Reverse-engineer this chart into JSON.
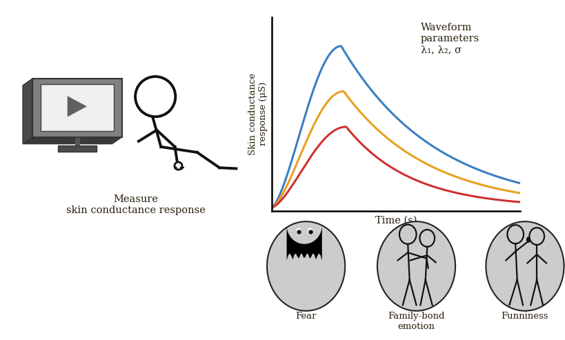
{
  "fig_width": 8.2,
  "fig_height": 4.93,
  "dpi": 100,
  "bg_color": "#ffffff",
  "curve_blue": "#3a7fc1",
  "curve_orange": "#e8a020",
  "curve_red": "#d03030",
  "curve_lw": 2.2,
  "ylabel": "Skin conductance\nresponse (μS)",
  "xlabel": "Time (s)",
  "annotation": "Waveform\nparameters\nλ₁, λ₂, σ",
  "text_measure": "Measure\nskin conductance response",
  "emotion_labels": [
    "Fear",
    "Family-bond\nemotion",
    "Funniness"
  ],
  "text_color": "#2a1f0f",
  "icon_bg": "#cccccc",
  "icon_edge": "#222222"
}
